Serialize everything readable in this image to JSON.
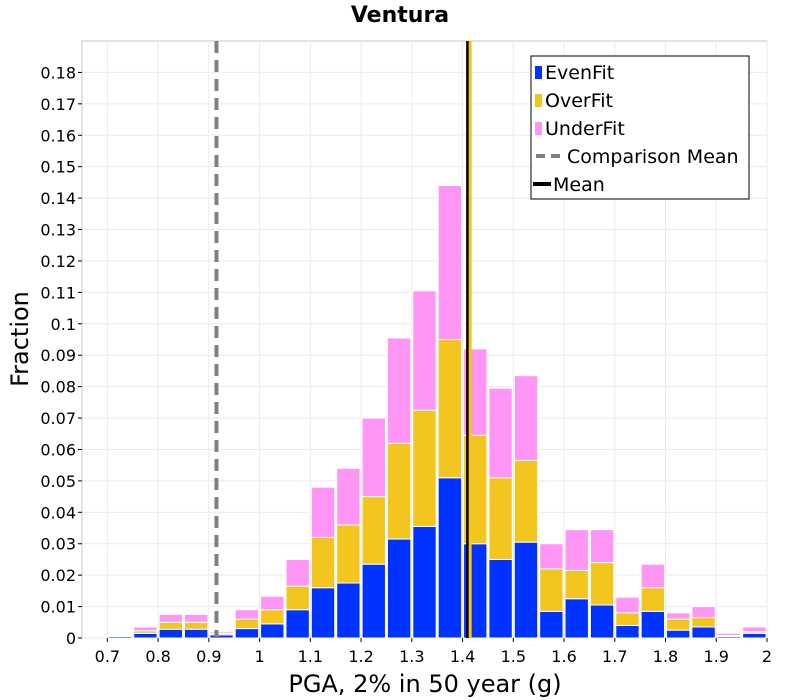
{
  "chart_data": {
    "type": "bar",
    "stacked": true,
    "title": "Ventura",
    "xlabel": "PGA, 2% in 50 year (g)",
    "ylabel": "Fraction",
    "xlim": [
      0.65,
      2.0
    ],
    "ylim": [
      0,
      0.19
    ],
    "grid": true,
    "legend_position": "top-right",
    "bin_width": 0.05,
    "x_ticks": [
      "0.7",
      "0.8",
      "0.9",
      "1",
      "1.1",
      "1.2",
      "1.3",
      "1.4",
      "1.5",
      "1.6",
      "1.7",
      "1.8",
      "1.9",
      "2"
    ],
    "x_tick_values": [
      0.7,
      0.8,
      0.9,
      1.0,
      1.1,
      1.2,
      1.3,
      1.4,
      1.5,
      1.6,
      1.7,
      1.8,
      1.9,
      2.0
    ],
    "y_ticks": [
      "0",
      "0.01",
      "0.02",
      "0.03",
      "0.04",
      "0.05",
      "0.06",
      "0.07",
      "0.08",
      "0.09",
      "0.1",
      "0.11",
      "0.12",
      "0.13",
      "0.14",
      "0.15",
      "0.16",
      "0.17",
      "0.18"
    ],
    "y_tick_values": [
      0,
      0.01,
      0.02,
      0.03,
      0.04,
      0.05,
      0.06,
      0.07,
      0.08,
      0.09,
      0.1,
      0.11,
      0.12,
      0.13,
      0.14,
      0.15,
      0.16,
      0.17,
      0.18
    ],
    "bin_left_edges": [
      0.7,
      0.75,
      0.8,
      0.85,
      0.9,
      0.95,
      1.0,
      1.05,
      1.1,
      1.15,
      1.2,
      1.25,
      1.3,
      1.35,
      1.4,
      1.45,
      1.5,
      1.55,
      1.6,
      1.65,
      1.7,
      1.75,
      1.8,
      1.85,
      1.9,
      1.95
    ],
    "series": [
      {
        "name": "EvenFit",
        "color": "#0033ff",
        "values": [
          0.0005,
          0.0015,
          0.0028,
          0.0028,
          0.001,
          0.003,
          0.0045,
          0.009,
          0.016,
          0.0175,
          0.0235,
          0.0315,
          0.0355,
          0.051,
          0.03,
          0.025,
          0.0305,
          0.0085,
          0.0125,
          0.0105,
          0.004,
          0.0085,
          0.0025,
          0.0035,
          0.0005,
          0.0015
        ]
      },
      {
        "name": "OverFit",
        "color": "#f2c61f",
        "values": [
          0.0002,
          0.0008,
          0.0022,
          0.0022,
          0.0005,
          0.003,
          0.0045,
          0.0075,
          0.016,
          0.0185,
          0.0215,
          0.0305,
          0.037,
          0.044,
          0.0345,
          0.026,
          0.026,
          0.0135,
          0.009,
          0.0135,
          0.004,
          0.0075,
          0.0035,
          0.003,
          0.0003,
          0.0005
        ]
      },
      {
        "name": "UnderFit",
        "color": "#ff96f5",
        "values": [
          0.0003,
          0.0012,
          0.0025,
          0.0025,
          0.0005,
          0.003,
          0.0043,
          0.0085,
          0.016,
          0.018,
          0.025,
          0.0335,
          0.038,
          0.049,
          0.0275,
          0.0285,
          0.027,
          0.008,
          0.013,
          0.0105,
          0.005,
          0.0075,
          0.002,
          0.0035,
          0.0007,
          0.0015
        ]
      }
    ],
    "reference_lines": [
      {
        "name": "Comparison Mean",
        "x": 0.915,
        "style": "dashed",
        "color": "#808080"
      },
      {
        "name": "Mean",
        "x": 1.41,
        "style": "solid",
        "color": "#000000"
      },
      {
        "name": "",
        "x": 1.415,
        "style": "solid",
        "color": "#f2c61f"
      }
    ],
    "legend": [
      {
        "label": "EvenFit",
        "kind": "box",
        "color": "#0033ff"
      },
      {
        "label": "OverFit",
        "kind": "box",
        "color": "#f2c61f"
      },
      {
        "label": "UnderFit",
        "kind": "box",
        "color": "#ff96f5"
      },
      {
        "label": "Comparison Mean",
        "kind": "dash",
        "color": "#808080"
      },
      {
        "label": "Mean",
        "kind": "line",
        "color": "#000000"
      }
    ]
  }
}
